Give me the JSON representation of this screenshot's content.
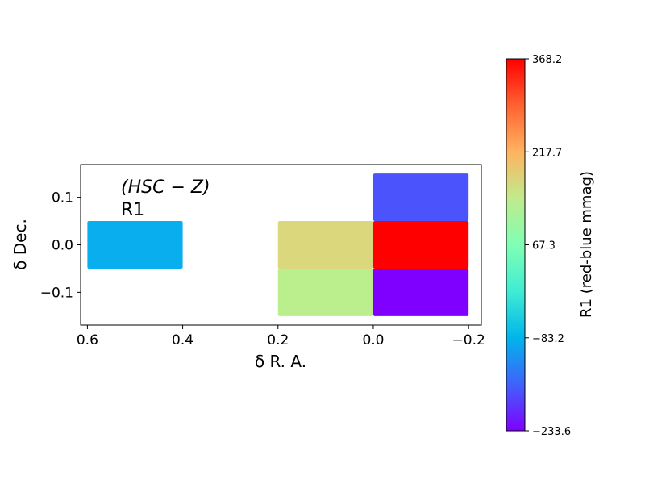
{
  "chart_data": {
    "type": "heatmap",
    "panel_label_filter": "(HSC − Z)",
    "panel_label_region": "R1",
    "xlabel": "δ R. A.",
    "ylabel": "δ Dec.",
    "xlim": [
      0.6142,
      -0.2268
    ],
    "ylim": [
      -0.169,
      0.169
    ],
    "x_ticks": [
      0.6,
      0.4,
      0.2,
      0.0,
      -0.2
    ],
    "x_tick_labels": [
      "0.6",
      "0.4",
      "0.2",
      "0.0",
      "−0.2"
    ],
    "y_ticks": [
      0.1,
      0.0,
      -0.1
    ],
    "y_tick_labels": [
      "0.1",
      "0.0",
      "−0.1"
    ],
    "cells": [
      {
        "x0": 0.6,
        "x1": 0.4,
        "y0": -0.05,
        "y1": 0.05,
        "value": -90,
        "color": "#08aeed"
      },
      {
        "x0": 0.2,
        "x1": 0.0,
        "y0": -0.05,
        "y1": 0.05,
        "value": 180,
        "color": "#dbd77d"
      },
      {
        "x0": 0.2,
        "x1": 0.0,
        "y0": -0.15,
        "y1": -0.05,
        "value": 110,
        "color": "#bbee8d"
      },
      {
        "x0": 0.0,
        "x1": -0.2,
        "y0": 0.05,
        "y1": 0.15,
        "value": -165,
        "color": "#4b53fd"
      },
      {
        "x0": 0.0,
        "x1": -0.2,
        "y0": -0.05,
        "y1": 0.05,
        "value": 368.2,
        "color": "#ff0000"
      },
      {
        "x0": 0.0,
        "x1": -0.2,
        "y0": -0.15,
        "y1": -0.05,
        "value": -233.6,
        "color": "#7f00ff"
      }
    ],
    "colorbar": {
      "label": "R1 (red-blue mmag)",
      "min": -233.6,
      "max": 368.2,
      "ticks": [
        -233.6,
        -83.2,
        67.3,
        217.7,
        368.2
      ],
      "tick_labels": [
        "−233.6",
        "−83.2",
        "67.3",
        "217.7",
        "368.2"
      ],
      "colormap": "rainbow"
    },
    "grid": false,
    "legend": "none"
  }
}
